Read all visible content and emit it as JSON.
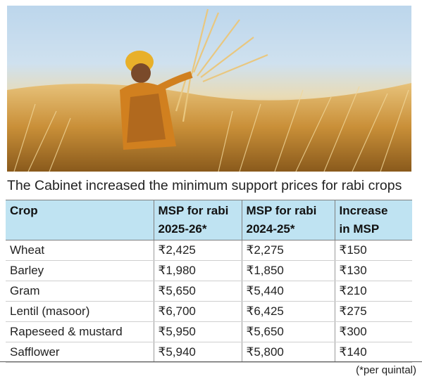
{
  "image": {
    "subject": "farmer-harvesting-wheat-photo"
  },
  "caption": "The Cabinet increased the minimum support prices for rabi crops",
  "table": {
    "headers": [
      [
        "Crop",
        ""
      ],
      [
        "MSP for rabi",
        "2025-26*"
      ],
      [
        "MSP for rabi",
        "2024-25*"
      ],
      [
        "Increase",
        "in MSP"
      ]
    ],
    "rows": [
      [
        "Wheat",
        "₹2,425",
        "₹2,275",
        "₹150"
      ],
      [
        "Barley",
        "₹1,980",
        "₹1,850",
        "₹130"
      ],
      [
        "Gram",
        "₹5,650",
        "₹5,440",
        "₹210"
      ],
      [
        "Lentil (masoor)",
        "₹6,700",
        "₹6,425",
        "₹275"
      ],
      [
        "Rapeseed & mustard",
        "₹5,950",
        "₹5,650",
        "₹300"
      ],
      [
        "Safflower",
        "₹5,940",
        "₹5,800",
        "₹140"
      ]
    ]
  },
  "footnote": "(*per quintal)"
}
